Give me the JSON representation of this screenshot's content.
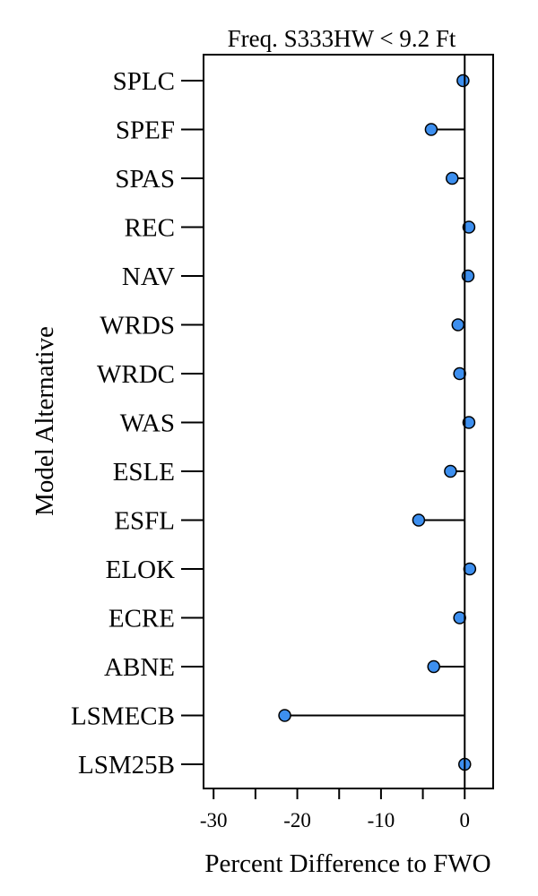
{
  "chart_data": {
    "type": "scatter",
    "title": "Freq. S333HW < 9.2 Ft",
    "xlabel": "Percent Difference to FWO",
    "ylabel": "Model Alternative",
    "xlim": [
      -31.2,
      3.4
    ],
    "xticks": [
      -30,
      -20,
      -10,
      0
    ],
    "xtick_labels": [
      "-30",
      "-20",
      "-10",
      "0"
    ],
    "grid": false,
    "reference_line_x": 0,
    "categories": [
      "SPLC",
      "SPEF",
      "SPAS",
      "REC",
      "NAV",
      "WRDS",
      "WRDC",
      "WAS",
      "ESLE",
      "ESFL",
      "ELOK",
      "ECRE",
      "ABNE",
      "LSMECB",
      "LSM25B"
    ],
    "values": [
      -0.2,
      -4.0,
      -1.5,
      0.5,
      0.4,
      -0.8,
      -0.6,
      0.5,
      -1.7,
      -5.5,
      0.6,
      -0.6,
      -3.7,
      -21.5,
      0.0
    ],
    "colors": {
      "point": "#3d8fef",
      "outline": "#000000",
      "line": "#000000"
    }
  }
}
